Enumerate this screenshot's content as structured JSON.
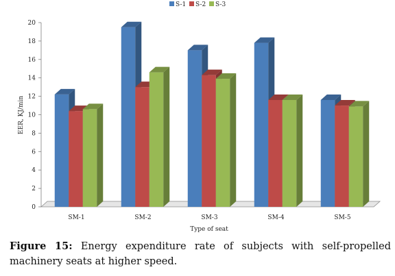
{
  "chart_data": {
    "type": "bar",
    "categories": [
      "SM-1",
      "SM-2",
      "SM-3",
      "SM-4",
      "SM-5"
    ],
    "series": [
      {
        "name": "S-1",
        "color": "#4a7ebb",
        "values": [
          12.2,
          19.5,
          17.0,
          17.8,
          11.6
        ]
      },
      {
        "name": "S-2",
        "color": "#be4b48",
        "values": [
          10.4,
          13.0,
          14.3,
          11.6,
          11.0
        ]
      },
      {
        "name": "S-3",
        "color": "#98b954",
        "values": [
          10.6,
          14.6,
          13.9,
          11.6,
          10.9
        ]
      }
    ],
    "xlabel": "Type of seat",
    "ylabel": "EER, KJ/min",
    "ylim": [
      0,
      20
    ],
    "yticks": [
      "0",
      "2",
      "4",
      "6",
      "8",
      "10",
      "12",
      "14",
      "16",
      "18",
      "20"
    ],
    "grid": false,
    "legend": "top-center",
    "style": "3d-column"
  },
  "caption": {
    "label": "Figure 15:",
    "text": "Energy expenditure rate of subjects with self-propelled machinery seats at higher speed."
  }
}
